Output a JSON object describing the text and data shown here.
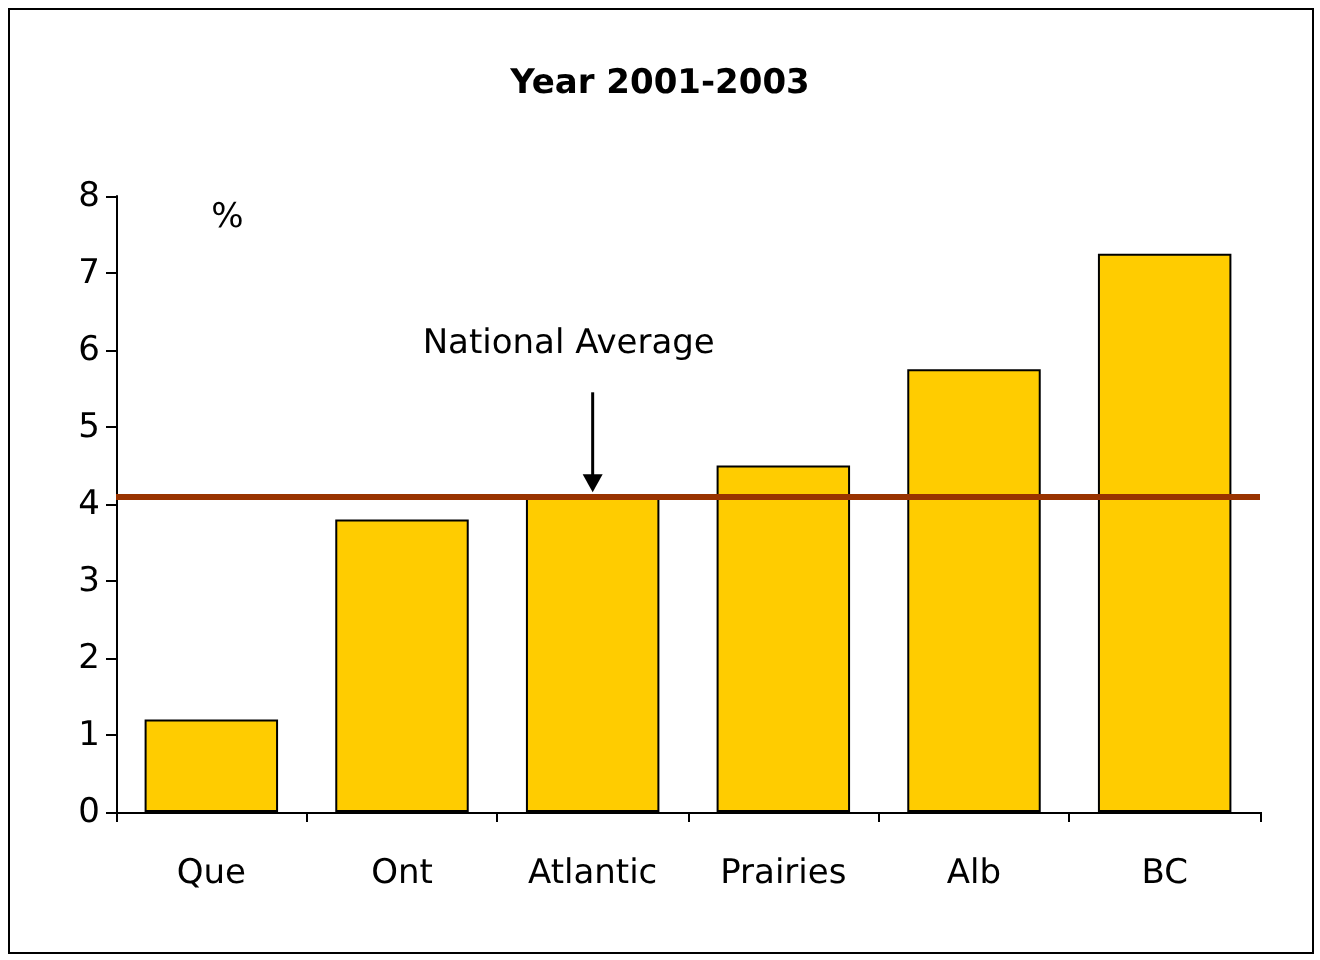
{
  "chart_data": {
    "type": "bar",
    "title": "Year 2001-2003",
    "ylabel": "%",
    "categories": [
      "Que",
      "Ont",
      "Atlantic",
      "Prairies",
      "Alb",
      "BC"
    ],
    "values": [
      1.2,
      3.8,
      4.1,
      4.5,
      5.75,
      7.25
    ],
    "color": "#ffcc00",
    "ylim": [
      0,
      8
    ],
    "yticks": [
      0,
      1,
      2,
      3,
      4,
      5,
      6,
      7,
      8
    ],
    "grid": false,
    "ref_lines": [
      {
        "axis": "y",
        "value": 4.1,
        "label": "National Average",
        "color": "#993300"
      }
    ]
  }
}
